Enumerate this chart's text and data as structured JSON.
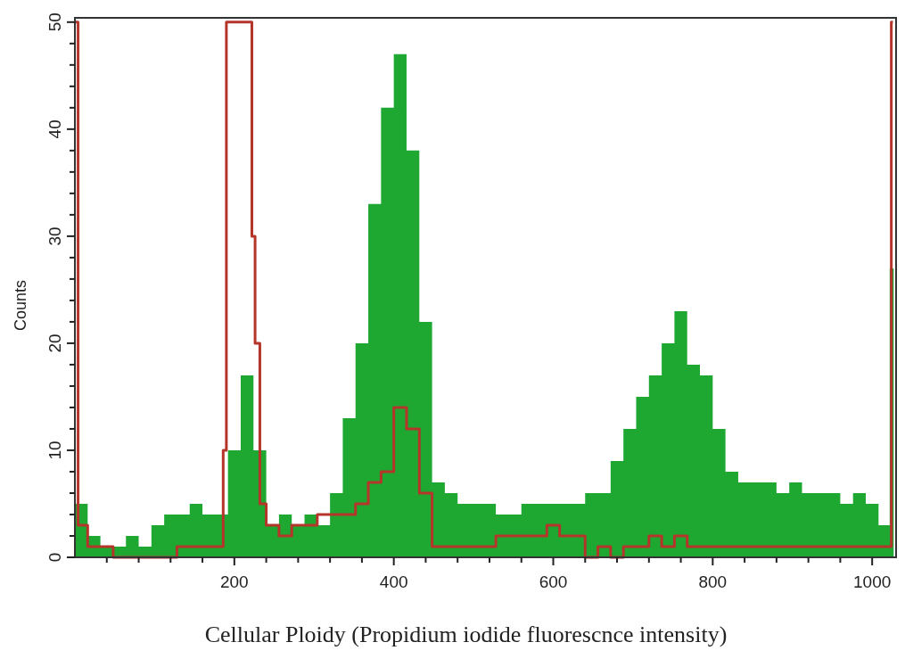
{
  "chart_data": {
    "type": "area",
    "xlabel": "Cellular Ploidy (Propidium iodide fluorescnce intensity)",
    "ylabel": "Counts",
    "xlim": [
      0,
      1030
    ],
    "ylim": [
      0,
      50.4
    ],
    "xticks": [
      {
        "value": 40,
        "label": null
      },
      {
        "value": 80,
        "label": null
      },
      {
        "value": 120,
        "label": null
      },
      {
        "value": 160,
        "label": null
      },
      200,
      {
        "value": 240,
        "label": null
      },
      {
        "value": 280,
        "label": null
      },
      {
        "value": 320,
        "label": null
      },
      {
        "value": 360,
        "label": null
      },
      400,
      {
        "value": 440,
        "label": null
      },
      {
        "value": 480,
        "label": null
      },
      {
        "value": 520,
        "label": null
      },
      {
        "value": 560,
        "label": null
      },
      600,
      {
        "value": 640,
        "label": null
      },
      {
        "value": 680,
        "label": null
      },
      {
        "value": 720,
        "label": null
      },
      {
        "value": 760,
        "label": null
      },
      800,
      {
        "value": 840,
        "label": null
      },
      {
        "value": 880,
        "label": null
      },
      {
        "value": 920,
        "label": null
      },
      {
        "value": 960,
        "label": null
      },
      1000
    ],
    "yticks": [
      0,
      {
        "value": 2,
        "label": null
      },
      {
        "value": 4,
        "label": null
      },
      {
        "value": 6,
        "label": null
      },
      {
        "value": 8,
        "label": null
      },
      10,
      {
        "value": 12,
        "label": null
      },
      {
        "value": 14,
        "label": null
      },
      {
        "value": 16,
        "label": null
      },
      {
        "value": 18,
        "label": null
      },
      20,
      {
        "value": 22,
        "label": null
      },
      {
        "value": 24,
        "label": null
      },
      {
        "value": 26,
        "label": null
      },
      {
        "value": 28,
        "label": null
      },
      30,
      {
        "value": 32,
        "label": null
      },
      {
        "value": 34,
        "label": null
      },
      {
        "value": 36,
        "label": null
      },
      {
        "value": 38,
        "label": null
      },
      40,
      {
        "value": 42,
        "label": null
      },
      {
        "value": 44,
        "label": null
      },
      {
        "value": 46,
        "label": null
      },
      {
        "value": 48,
        "label": null
      },
      50
    ],
    "grid": false,
    "series": [
      {
        "color": "#1ea832",
        "x": [
          0,
          16,
          32,
          48,
          64,
          80,
          96,
          112,
          128,
          144,
          160,
          176,
          192,
          208,
          224,
          240,
          256,
          272,
          288,
          304,
          320,
          336,
          352,
          368,
          384,
          400,
          416,
          432,
          448,
          464,
          480,
          496,
          512,
          528,
          544,
          560,
          576,
          592,
          608,
          624,
          640,
          656,
          672,
          688,
          704,
          720,
          736,
          752,
          768,
          784,
          800,
          816,
          832,
          848,
          864,
          880,
          896,
          912,
          928,
          944,
          960,
          976,
          992,
          1008,
          1022,
          1027
        ],
        "values": [
          5,
          2,
          1,
          1,
          2,
          1,
          3,
          4,
          4,
          5,
          4,
          4,
          10,
          17,
          10,
          3,
          4,
          3,
          4,
          3,
          6,
          13,
          20,
          33,
          42,
          47,
          38,
          22,
          7,
          6,
          5,
          5,
          5,
          4,
          4,
          5,
          5,
          5,
          5,
          5,
          6,
          6,
          9,
          12,
          15,
          17,
          20,
          23,
          18,
          17,
          12,
          8,
          7,
          7,
          7,
          6,
          7,
          6,
          6,
          6,
          5,
          6,
          5,
          3,
          27,
          0
        ]
      },
      {
        "type": "step",
        "color": "#b5352b",
        "x": [
          0,
          4,
          16,
          32,
          48,
          64,
          80,
          96,
          112,
          128,
          144,
          160,
          176,
          186,
          190,
          222,
          226,
          232,
          240,
          256,
          272,
          288,
          304,
          320,
          336,
          352,
          368,
          384,
          400,
          416,
          432,
          448,
          464,
          480,
          496,
          512,
          528,
          544,
          560,
          576,
          592,
          608,
          624,
          640,
          656,
          672,
          688,
          704,
          720,
          736,
          752,
          768,
          784,
          800,
          816,
          832,
          848,
          864,
          880,
          896,
          912,
          928,
          944,
          960,
          976,
          992,
          1008,
          1024,
          1026
        ],
        "values": [
          50,
          3,
          1,
          1,
          0,
          0,
          0,
          0,
          0,
          1,
          1,
          1,
          1,
          10,
          50,
          30,
          20,
          5,
          3,
          2,
          3,
          3,
          4,
          4,
          4,
          5,
          7,
          8,
          14,
          12,
          6,
          1,
          1,
          1,
          1,
          1,
          2,
          2,
          2,
          2,
          3,
          2,
          2,
          0,
          1,
          0,
          1,
          1,
          2,
          1,
          2,
          1,
          1,
          1,
          1,
          1,
          1,
          1,
          1,
          1,
          1,
          1,
          1,
          1,
          1,
          1,
          1,
          50,
          50
        ]
      }
    ]
  }
}
